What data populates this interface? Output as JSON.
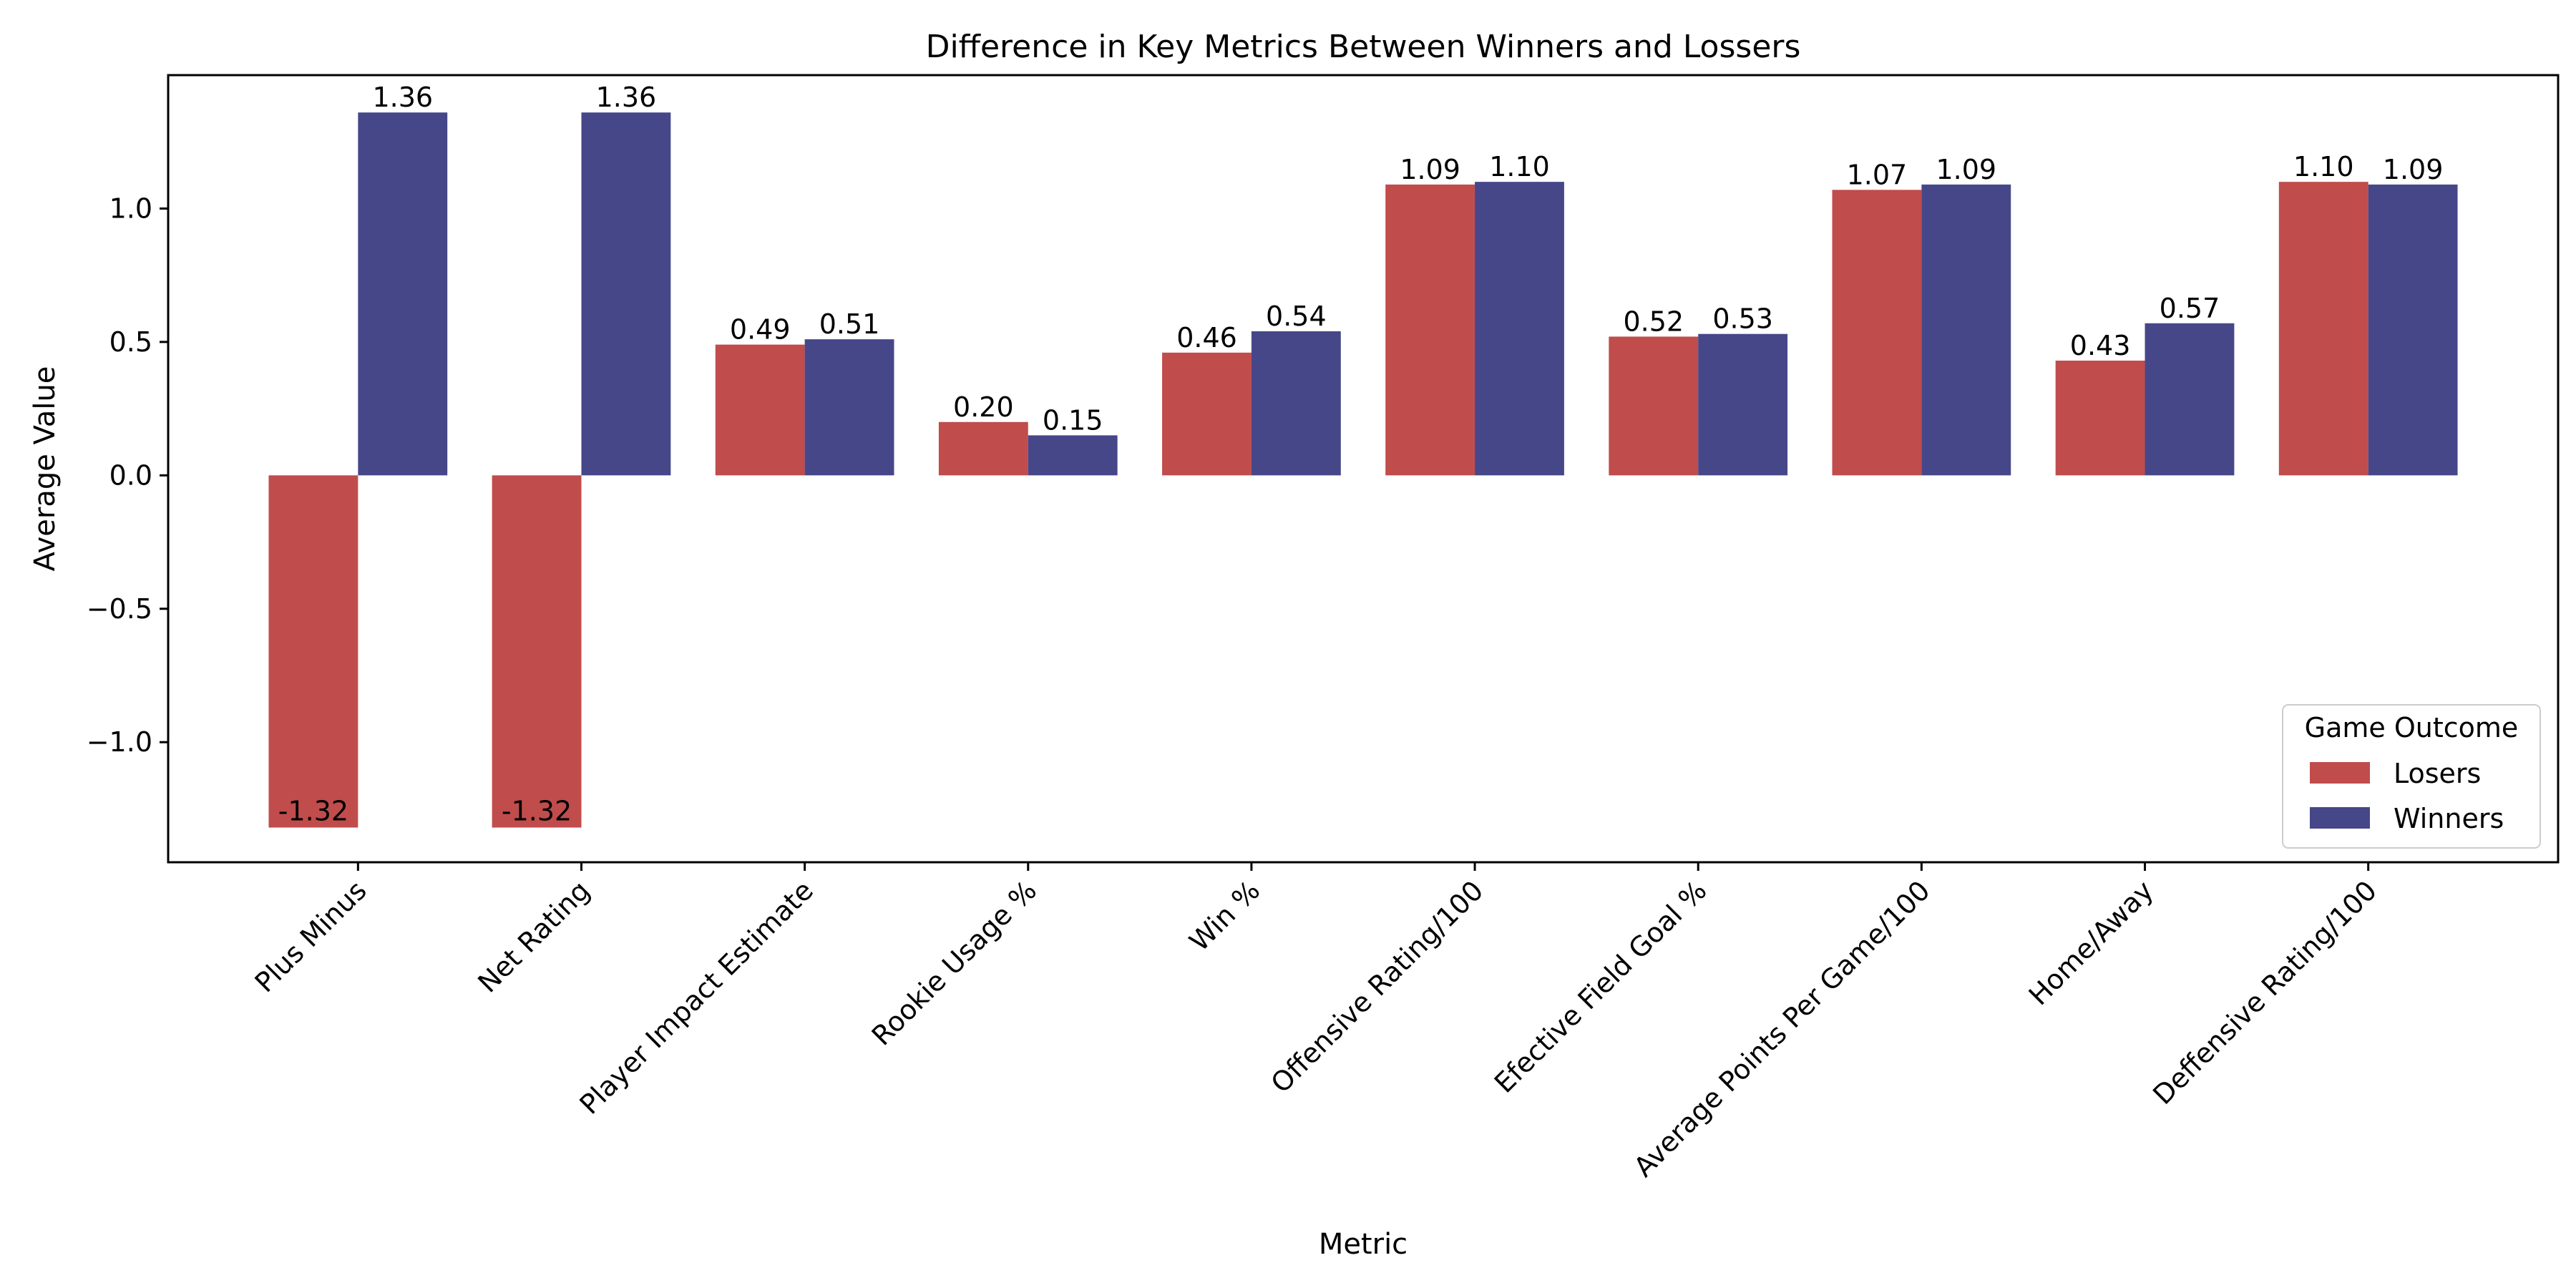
{
  "chart_data": {
    "type": "bar",
    "title": "Difference in Key Metrics Between Winners and Lossers",
    "xlabel": "Metric",
    "ylabel": "Average Value",
    "categories": [
      "Plus Minus",
      "Net Rating",
      "Player Impact Estimate",
      "Rookie Usage %",
      "Win %",
      "Offensive Rating/100",
      "Efective Field Goal %",
      "Average Points Per Game/100",
      "Home/Away",
      "Deffensive Rating/100"
    ],
    "series": [
      {
        "name": "Losers",
        "color": "#c04c4c",
        "values": [
          -1.32,
          -1.32,
          0.49,
          0.2,
          0.46,
          1.09,
          0.52,
          1.07,
          0.43,
          1.1
        ],
        "labels": [
          "-1.32",
          "-1.32",
          "0.49",
          "0.20",
          "0.46",
          "1.09",
          "0.52",
          "1.07",
          "0.43",
          "1.10"
        ]
      },
      {
        "name": "Winners",
        "color": "#464789",
        "values": [
          1.36,
          1.36,
          0.51,
          0.15,
          0.54,
          1.1,
          0.53,
          1.09,
          0.57,
          1.09
        ],
        "labels": [
          "1.36",
          "1.36",
          "0.51",
          "0.15",
          "0.54",
          "1.10",
          "0.53",
          "1.09",
          "0.57",
          "1.09"
        ]
      }
    ],
    "ylim": [
      -1.45,
      1.5
    ],
    "yticks": [
      {
        "value": -1.0,
        "label": "−1.0"
      },
      {
        "value": -0.5,
        "label": "−0.5"
      },
      {
        "value": 0.0,
        "label": "0.0"
      },
      {
        "value": 0.5,
        "label": "0.5"
      },
      {
        "value": 1.0,
        "label": "1.0"
      }
    ],
    "grid": false,
    "legend": {
      "title": "Game Outcome",
      "position": "lower-right"
    }
  }
}
